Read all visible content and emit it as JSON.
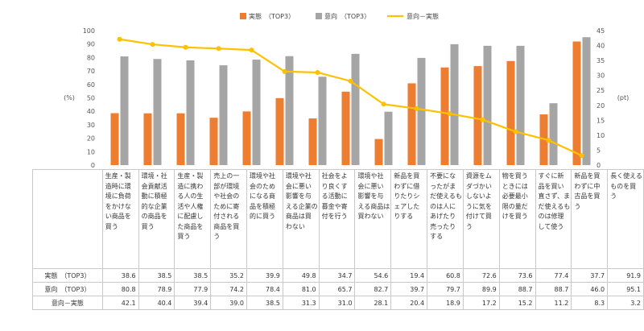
{
  "chart_data": {
    "type": "bar",
    "categories": [
      "生産・製造時に環境に負荷をかけない商品を買う",
      "環境・社会貢献活動に積極的な企業の商品を買う",
      "生産・製造に携わる人の生活や人権に配慮した商品を買う",
      "売上の一部が環境や社会のために寄付される商品を買う",
      "環境や社会のためになる商品を積極的に買う",
      "環境や社会に悪い影響を与える企業の商品は買わない",
      "社会をより良くする活動に募金や寄付を行う",
      "環境や社会に悪い影響を与える商品は買わない",
      "新品を買わずに借りたりシェアしたりする",
      "不要になったがまだ使えるものは人にあげたり売ったりする",
      "資源をムダづかいしないように気を付けて買う",
      "物を買うときには必要最小限の量だけを買う",
      "すぐに新品を買い直さず、まだ使えるものは修理して使う",
      "新品を買わずに中古品を買う",
      "長く使えるものを買う"
    ],
    "series": [
      {
        "name": "実態　（TOP3）",
        "type": "bar",
        "axis": "left",
        "color": "#ED7D31",
        "values": [
          38.6,
          38.5,
          38.5,
          35.2,
          39.9,
          49.8,
          34.7,
          54.6,
          19.4,
          60.8,
          72.6,
          73.6,
          77.4,
          37.7,
          91.9
        ]
      },
      {
        "name": "意向　（TOP3）",
        "type": "bar",
        "axis": "left",
        "color": "#A5A5A5",
        "values": [
          80.8,
          78.9,
          77.9,
          74.2,
          78.4,
          81.0,
          65.7,
          82.7,
          39.7,
          79.7,
          89.9,
          88.7,
          88.7,
          46.0,
          95.1
        ]
      },
      {
        "name": "意向－実態",
        "type": "line",
        "axis": "right",
        "color": "#FFC000",
        "values": [
          42.1,
          40.4,
          39.4,
          39.0,
          38.5,
          31.3,
          31.0,
          28.1,
          20.4,
          18.9,
          17.2,
          15.2,
          11.2,
          8.3,
          3.2
        ]
      }
    ],
    "ylabel": "(%)",
    "y2label": "(pt)",
    "ylim": [
      0,
      100
    ],
    "y2lim": [
      0,
      45
    ],
    "yticks": [
      "0",
      "10",
      "20",
      "30",
      "40",
      "50",
      "60",
      "70",
      "80",
      "90",
      "100"
    ],
    "y2ticks": [
      "0",
      "5",
      "10",
      "15",
      "20",
      "25",
      "30",
      "35",
      "40",
      "45"
    ],
    "legend_position": "top-center",
    "grid": false
  },
  "table": {
    "row_labels": [
      "実態　（TOP3）",
      "意向　（TOP3）",
      "意向－実態"
    ],
    "rows": [
      [
        "38.6",
        "38.5",
        "38.5",
        "35.2",
        "39.9",
        "49.8",
        "34.7",
        "54.6",
        "19.4",
        "60.8",
        "72.6",
        "73.6",
        "77.4",
        "37.7",
        "91.9"
      ],
      [
        "80.8",
        "78.9",
        "77.9",
        "74.2",
        "78.4",
        "81.0",
        "65.7",
        "82.7",
        "39.7",
        "79.7",
        "89.9",
        "88.7",
        "88.7",
        "46.0",
        "95.1"
      ],
      [
        "42.1",
        "40.4",
        "39.4",
        "39.0",
        "38.5",
        "31.3",
        "31.0",
        "28.1",
        "20.4",
        "18.9",
        "17.2",
        "15.2",
        "11.2",
        "8.3",
        "3.2"
      ]
    ]
  }
}
